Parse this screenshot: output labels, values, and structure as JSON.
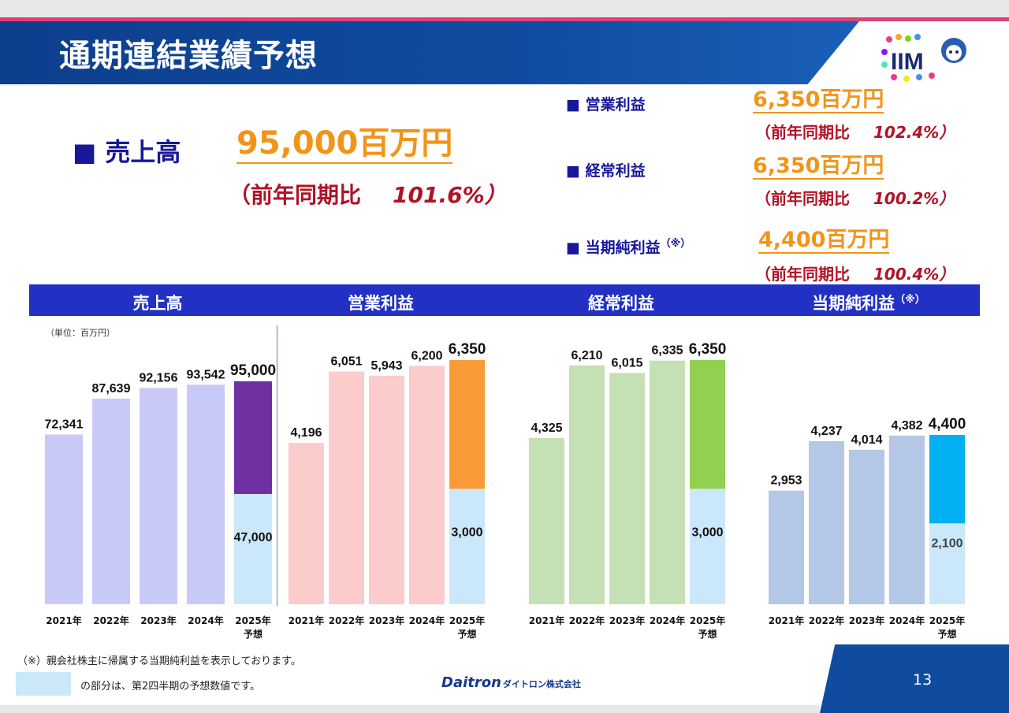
{
  "header": {
    "title": "通期連結業績予想",
    "logo_text": "IIM"
  },
  "summary": {
    "sales": {
      "label": "■ 売上高",
      "value": "95,000百万円",
      "yoy_label": "（前年同期比",
      "yoy_value": "101.6%）"
    },
    "operating": {
      "label": "■ 営業利益",
      "value": "6,350百万円",
      "yoy_label": "（前年同期比",
      "yoy_value": "102.4%）"
    },
    "ordinary": {
      "label": "■ 経常利益",
      "value": "6,350百万円",
      "yoy_label": "（前年同期比",
      "yoy_value": "100.2%）"
    },
    "net": {
      "label": "■ 当期純利益",
      "note_mark": "（※）",
      "value": "4,400百万円",
      "yoy_label": "（前年同期比",
      "yoy_value": "100.4%）"
    }
  },
  "chart_section": {
    "unit": "（単位：百万円）",
    "titles": [
      "売上高",
      "営業利益",
      "経常利益",
      "当期純利益"
    ],
    "net_note_mark": "（※）"
  },
  "chart_data": [
    {
      "type": "bar",
      "title": "売上高",
      "categories": [
        "2021年",
        "2022年",
        "2023年",
        "2024年",
        "2025年\n予想"
      ],
      "values": [
        72341,
        87639,
        92156,
        93542,
        95000
      ],
      "labels": [
        "72,341",
        "87,639",
        "92,156",
        "93,542",
        "95,000"
      ],
      "first_half_forecast": 47000,
      "first_half_label": "47,000",
      "colors": {
        "actual": "#c9c9f8",
        "forecast": "#7030a0",
        "h1": "#cbe8fa"
      }
    },
    {
      "type": "bar",
      "title": "営業利益",
      "categories": [
        "2021年",
        "2022年",
        "2023年",
        "2024年",
        "2025年\n予想"
      ],
      "values": [
        4196,
        6051,
        5943,
        6200,
        6350
      ],
      "labels": [
        "4,196",
        "6,051",
        "5,943",
        "6,200",
        "6,350"
      ],
      "first_half_forecast": 3000,
      "first_half_label": "3,000",
      "colors": {
        "actual": "#fccccc",
        "forecast": "#fb9a38",
        "h1": "#cbe8fa"
      }
    },
    {
      "type": "bar",
      "title": "経常利益",
      "categories": [
        "2021年",
        "2022年",
        "2023年",
        "2024年",
        "2025年\n予想"
      ],
      "values": [
        4325,
        6210,
        6015,
        6335,
        6350
      ],
      "labels": [
        "4,325",
        "6,210",
        "6,015",
        "6,335",
        "6,350"
      ],
      "first_half_forecast": 3000,
      "first_half_label": "3,000",
      "colors": {
        "actual": "#c5e0b4",
        "forecast": "#92d050",
        "h1": "#cbe8fa"
      }
    },
    {
      "type": "bar",
      "title": "当期純利益",
      "categories": [
        "2021年",
        "2022年",
        "2023年",
        "2024年",
        "2025年\n予想"
      ],
      "values": [
        2953,
        4237,
        4014,
        4382,
        4400
      ],
      "labels": [
        "2,953",
        "4,237",
        "4,014",
        "4,382",
        "4,400"
      ],
      "first_half_forecast": 2100,
      "first_half_label": "2,100",
      "colors": {
        "actual": "#b4c7e7",
        "forecast": "#00b0f0",
        "h1": "#cbe8fa"
      }
    }
  ],
  "footer": {
    "footnote": "（※）親会社株主に帰属する当期純利益を表示しております。",
    "legend_text": "の部分は、第2四半期の予想数値です。",
    "brand": "Daitron",
    "brand_kana": "ダイトロン株式会社",
    "page_number": "13"
  }
}
